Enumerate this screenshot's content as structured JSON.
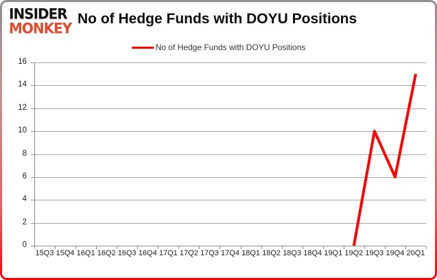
{
  "logo": {
    "line1": "INSIDER",
    "line2": "MONKEY",
    "color_top": "#121212",
    "color_bottom": "#dd4b2e"
  },
  "header": {
    "title": "No of Hedge Funds with DOYU Positions"
  },
  "legend": {
    "label": "No of Hedge Funds with DOYU Positions",
    "line_color": "#ff0000"
  },
  "chart_data": {
    "type": "line",
    "title": "No of Hedge Funds with DOYU Positions",
    "categories": [
      "15Q3",
      "15Q4",
      "16Q1",
      "16Q2",
      "16Q3",
      "16Q4",
      "17Q1",
      "17Q2",
      "17Q3",
      "17Q4",
      "18Q1",
      "18Q2",
      "18Q3",
      "18Q4",
      "19Q1",
      "19Q2",
      "19Q3",
      "19Q4",
      "20Q1"
    ],
    "series": [
      {
        "name": "No of Hedge Funds with DOYU Positions",
        "color": "#ff0000",
        "values": [
          null,
          null,
          null,
          null,
          null,
          null,
          null,
          null,
          null,
          null,
          null,
          null,
          null,
          null,
          null,
          0,
          10,
          6,
          15
        ]
      }
    ],
    "xlabel": "",
    "ylabel": "",
    "ylim": [
      0,
      16
    ],
    "ytick_step": 2,
    "yticks": [
      0,
      2,
      4,
      6,
      8,
      10,
      12,
      14,
      16
    ],
    "grid": true,
    "gridline_color": "#a6a6a6",
    "axis_color": "#8c8c8c",
    "legend_position": "top-center"
  }
}
